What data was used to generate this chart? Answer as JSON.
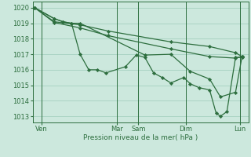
{
  "title": "Pression niveau de la mer( hPa )",
  "bg_color": "#cce8dd",
  "grid_color": "#aad4c4",
  "line_color": "#2d6e3e",
  "marker_color": "#2d6e3e",
  "xlim": [
    0.0,
    1.0
  ],
  "ylim": [
    1012.6,
    1020.4
  ],
  "yticks": [
    1013,
    1014,
    1015,
    1016,
    1017,
    1018,
    1019,
    1020
  ],
  "xtick_labels": [
    "Ven",
    "Mar",
    "Sam",
    "Dim",
    "Lun"
  ],
  "xtick_positions": [
    0.04,
    0.39,
    0.49,
    0.71,
    0.96
  ],
  "vline_positions": [
    0.04,
    0.39,
    0.49,
    0.71,
    0.96
  ],
  "series1_x": [
    0.01,
    0.1,
    0.14,
    0.18,
    0.22,
    0.26,
    0.3,
    0.34,
    0.43,
    0.48,
    0.52,
    0.56,
    0.6,
    0.64,
    0.7,
    0.73,
    0.77,
    0.82,
    0.85,
    0.87,
    0.9,
    0.94,
    0.97
  ],
  "series1_y": [
    1020.0,
    1019.3,
    1019.1,
    1019.0,
    1017.0,
    1016.0,
    1016.0,
    1015.8,
    1016.2,
    1016.95,
    1016.8,
    1015.8,
    1015.5,
    1015.15,
    1015.5,
    1015.1,
    1014.85,
    1014.7,
    1013.2,
    1013.0,
    1013.3,
    1016.8,
    1016.8
  ],
  "series2_x": [
    0.01,
    0.1,
    0.14,
    0.18,
    0.22,
    0.52,
    0.64,
    0.73,
    0.82,
    0.87,
    0.94,
    0.97
  ],
  "series2_y": [
    1020.0,
    1019.3,
    1019.1,
    1019.0,
    1019.0,
    1016.95,
    1017.0,
    1015.9,
    1015.4,
    1014.25,
    1014.55,
    1016.85
  ],
  "series3_x": [
    0.01,
    0.1,
    0.22,
    0.35,
    0.64,
    0.82,
    0.94,
    0.97
  ],
  "series3_y": [
    1020.0,
    1019.1,
    1018.9,
    1018.5,
    1017.8,
    1017.5,
    1017.1,
    1016.85
  ],
  "series4_x": [
    0.01,
    0.1,
    0.22,
    0.35,
    0.64,
    0.82,
    0.94,
    0.97
  ],
  "series4_y": [
    1020.0,
    1019.05,
    1018.7,
    1018.2,
    1017.35,
    1016.85,
    1016.75,
    1016.85
  ]
}
